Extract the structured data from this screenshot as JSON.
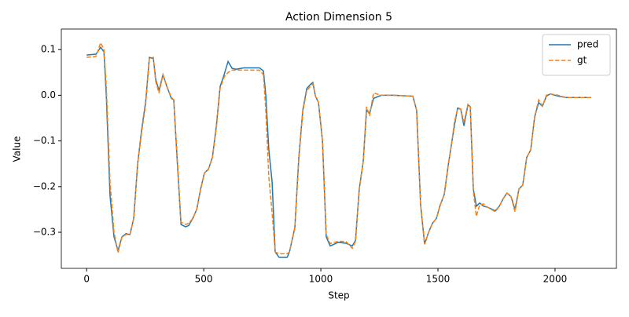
{
  "chart_data": {
    "type": "line",
    "title": "Action Dimension 5",
    "x_label": "Step",
    "y_label": "Value",
    "x": [
      0,
      40,
      60,
      74,
      84,
      100,
      117,
      134,
      151,
      168,
      185,
      201,
      218,
      235,
      252,
      268,
      285,
      295,
      309,
      326,
      342,
      362,
      372,
      386,
      403,
      423,
      436,
      453,
      470,
      487,
      503,
      520,
      537,
      554,
      570,
      587,
      604,
      621,
      638,
      671,
      705,
      738,
      755,
      765,
      778,
      792,
      805,
      822,
      856,
      866,
      889,
      906,
      923,
      940,
      956,
      966,
      977,
      990,
      1007,
      1023,
      1040,
      1057,
      1074,
      1107,
      1134,
      1148,
      1164,
      1181,
      1195,
      1208,
      1225,
      1258,
      1309,
      1393,
      1409,
      1426,
      1443,
      1460,
      1477,
      1493,
      1510,
      1527,
      1544,
      1560,
      1570,
      1584,
      1597,
      1611,
      1628,
      1638,
      1651,
      1664,
      1678,
      1695,
      1711,
      1745,
      1762,
      1779,
      1795,
      1812,
      1829,
      1846,
      1862,
      1879,
      1896,
      1913,
      1930,
      1946,
      1963,
      1980,
      2013,
      2047,
      2154
    ],
    "series": [
      {
        "name": "pred",
        "color": "#1f77b4",
        "dash": false,
        "values": [
          0.088,
          0.09,
          0.105,
          0.095,
          0.0,
          -0.22,
          -0.31,
          -0.34,
          -0.31,
          -0.303,
          -0.305,
          -0.27,
          -0.15,
          -0.075,
          -0.015,
          0.083,
          0.08,
          0.035,
          0.01,
          0.045,
          0.02,
          -0.007,
          -0.01,
          -0.136,
          -0.283,
          -0.288,
          -0.285,
          -0.27,
          -0.25,
          -0.205,
          -0.17,
          -0.162,
          -0.136,
          -0.067,
          0.019,
          0.045,
          0.074,
          0.059,
          0.057,
          0.06,
          0.06,
          0.06,
          0.053,
          0.0,
          -0.12,
          -0.19,
          -0.343,
          -0.355,
          -0.355,
          -0.343,
          -0.29,
          -0.136,
          -0.033,
          0.015,
          0.024,
          0.028,
          -0.002,
          -0.016,
          -0.1,
          -0.31,
          -0.33,
          -0.326,
          -0.322,
          -0.324,
          -0.33,
          -0.318,
          -0.205,
          -0.145,
          -0.033,
          -0.04,
          -0.007,
          0.0,
          0.0,
          -0.002,
          -0.033,
          -0.24,
          -0.326,
          -0.3,
          -0.28,
          -0.27,
          -0.24,
          -0.217,
          -0.153,
          -0.1,
          -0.067,
          -0.028,
          -0.03,
          -0.067,
          -0.021,
          -0.025,
          -0.205,
          -0.243,
          -0.236,
          -0.243,
          -0.245,
          -0.253,
          -0.243,
          -0.226,
          -0.214,
          -0.222,
          -0.25,
          -0.205,
          -0.197,
          -0.136,
          -0.12,
          -0.047,
          -0.016,
          -0.024,
          -0.002,
          0.003,
          -0.002,
          -0.005,
          -0.005
        ]
      },
      {
        "name": "gt",
        "color": "#ff7f0e",
        "dash": true,
        "values": [
          0.083,
          0.085,
          0.115,
          0.1,
          0.02,
          -0.19,
          -0.3,
          -0.345,
          -0.31,
          -0.305,
          -0.305,
          -0.27,
          -0.15,
          -0.08,
          -0.02,
          0.08,
          0.083,
          0.03,
          0.005,
          0.045,
          0.02,
          -0.005,
          -0.01,
          -0.13,
          -0.278,
          -0.283,
          -0.28,
          -0.27,
          -0.25,
          -0.205,
          -0.17,
          -0.162,
          -0.136,
          -0.07,
          0.015,
          0.04,
          0.05,
          0.055,
          0.055,
          0.055,
          0.055,
          0.055,
          0.045,
          -0.033,
          -0.18,
          -0.257,
          -0.343,
          -0.347,
          -0.347,
          -0.343,
          -0.29,
          -0.14,
          -0.035,
          0.01,
          0.02,
          0.025,
          -0.002,
          -0.016,
          -0.1,
          -0.305,
          -0.325,
          -0.322,
          -0.32,
          -0.32,
          -0.335,
          -0.32,
          -0.205,
          -0.145,
          -0.025,
          -0.045,
          0.005,
          0.0,
          0.0,
          -0.002,
          -0.033,
          -0.24,
          -0.326,
          -0.3,
          -0.28,
          -0.27,
          -0.24,
          -0.217,
          -0.153,
          -0.1,
          -0.06,
          -0.03,
          -0.03,
          -0.06,
          -0.02,
          -0.025,
          -0.21,
          -0.265,
          -0.24,
          -0.238,
          -0.245,
          -0.255,
          -0.243,
          -0.226,
          -0.214,
          -0.222,
          -0.255,
          -0.205,
          -0.197,
          -0.136,
          -0.12,
          -0.047,
          -0.01,
          -0.024,
          0.0,
          0.003,
          0.0,
          -0.005,
          -0.005
        ]
      }
    ],
    "xlim": [
      -108,
      2262
    ],
    "ylim": [
      -0.379,
      0.145
    ],
    "xticks": [
      0,
      500,
      1000,
      1500,
      2000
    ],
    "yticks": [
      {
        "value": -0.3,
        "label": "−0.3"
      },
      {
        "value": -0.2,
        "label": "−0.2"
      },
      {
        "value": -0.1,
        "label": "−0.1"
      },
      {
        "value": 0,
        "label": "0.0"
      },
      0.1
    ],
    "grid": false,
    "legend": "upper right"
  }
}
